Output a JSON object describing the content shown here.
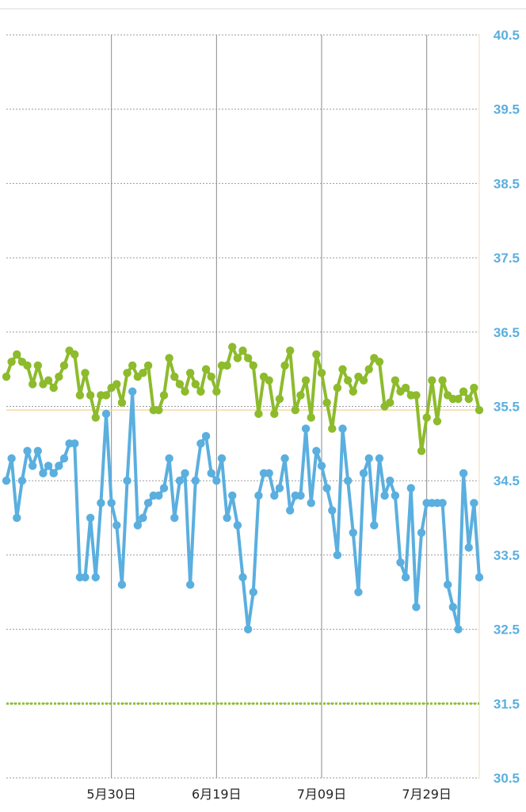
{
  "chart_data": {
    "type": "line",
    "ylim": [
      30.5,
      40.5
    ],
    "yticks": [
      "40.5",
      "39.5",
      "38.5",
      "37.5",
      "36.5",
      "35.5",
      "34.5",
      "33.5",
      "32.5",
      "31.5",
      "30.5"
    ],
    "xticks": [
      {
        "label": "5月30日",
        "index": 20
      },
      {
        "label": "6月19日",
        "index": 40
      },
      {
        "label": "7月09日",
        "index": 60
      },
      {
        "label": "7月29日",
        "index": 80
      }
    ],
    "x_count": 91,
    "reference_lines": [
      {
        "value": 35.45,
        "style": "solid",
        "color": "#f5d9a8"
      },
      {
        "value": 31.5,
        "style": "dotted",
        "color": "#8fbf3a"
      }
    ],
    "series": [
      {
        "color": "#8dbb2c",
        "values": [
          35.9,
          36.1,
          36.2,
          36.1,
          36.05,
          35.8,
          36.05,
          35.8,
          35.85,
          35.75,
          35.9,
          36.05,
          36.25,
          36.2,
          35.65,
          35.95,
          35.65,
          35.35,
          35.65,
          35.65,
          35.75,
          35.8,
          35.55,
          35.95,
          36.05,
          35.9,
          35.95,
          36.05,
          35.45,
          35.45,
          35.65,
          36.15,
          35.9,
          35.8,
          35.7,
          35.95,
          35.8,
          35.7,
          36.0,
          35.9,
          35.7,
          36.05,
          36.05,
          36.3,
          36.15,
          36.25,
          36.15,
          36.05,
          35.4,
          35.9,
          35.85,
          35.4,
          35.6,
          36.05,
          36.25,
          35.45,
          35.65,
          35.85,
          35.35,
          36.2,
          35.95,
          35.55,
          35.2,
          35.75,
          36.0,
          35.85,
          35.7,
          35.9,
          35.85,
          36.0,
          36.15,
          36.1,
          35.5,
          35.55,
          35.85,
          35.7,
          35.75,
          35.65,
          35.65,
          34.9,
          35.35,
          35.85,
          35.3,
          35.85,
          35.65,
          35.6,
          35.6,
          35.7,
          35.6,
          35.75,
          35.45
        ]
      },
      {
        "color": "#5aafdf",
        "values": [
          34.5,
          34.8,
          34.0,
          34.5,
          34.9,
          34.7,
          34.9,
          34.6,
          34.7,
          34.6,
          34.7,
          34.8,
          35.0,
          35.0,
          33.2,
          33.2,
          34.0,
          33.2,
          34.2,
          35.4,
          34.2,
          33.9,
          33.1,
          34.5,
          35.7,
          33.9,
          34.0,
          34.2,
          34.3,
          34.3,
          34.4,
          34.8,
          34.0,
          34.5,
          34.6,
          33.1,
          34.5,
          35.0,
          35.1,
          34.6,
          34.5,
          34.8,
          34.0,
          34.3,
          33.9,
          33.2,
          32.5,
          33.0,
          34.3,
          34.6,
          34.6,
          34.3,
          34.4,
          34.8,
          34.1,
          34.3,
          34.3,
          35.2,
          34.2,
          34.9,
          34.7,
          34.4,
          34.1,
          33.5,
          35.2,
          34.5,
          33.8,
          33.0,
          34.6,
          34.8,
          33.9,
          34.8,
          34.3,
          34.5,
          34.3,
          33.4,
          33.2,
          34.4,
          32.8,
          33.8,
          34.2,
          34.2,
          34.2,
          34.2,
          33.1,
          32.8,
          32.5,
          34.6,
          33.6,
          34.2,
          33.2
        ]
      }
    ]
  }
}
